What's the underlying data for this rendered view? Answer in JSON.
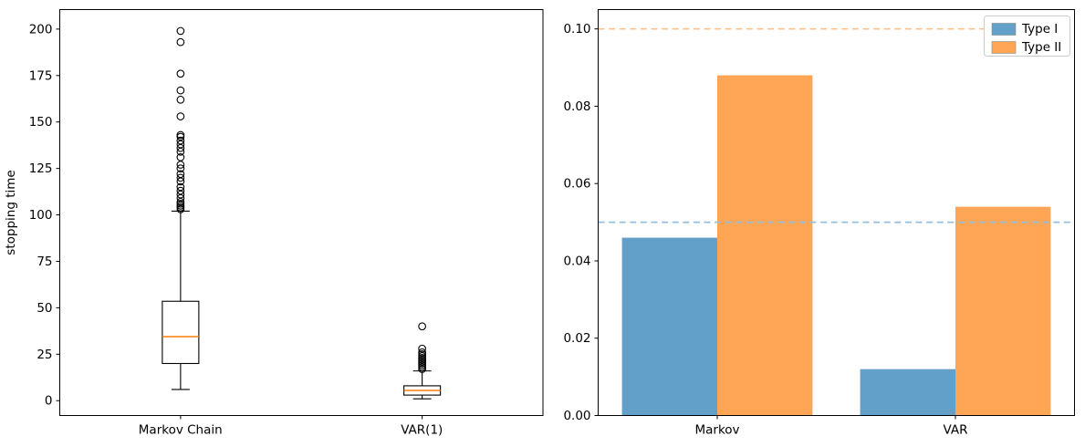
{
  "figure": {
    "background": "#ffffff",
    "axis_color": "#000000",
    "text_color": "#000000"
  },
  "chart_data": [
    {
      "type": "boxplot",
      "panel": "left",
      "title": "",
      "ylabel": "stopping time",
      "categories": [
        "Markov Chain",
        "VAR(1)"
      ],
      "positions": [
        1,
        2
      ],
      "xlim": [
        0.5,
        2.5
      ],
      "ylim": [
        -8,
        210.5
      ],
      "yticks": [
        0,
        25,
        50,
        75,
        100,
        125,
        150,
        175,
        200
      ],
      "ytick_labels": [
        "0",
        "25",
        "50",
        "75",
        "100",
        "125",
        "150",
        "175",
        "200"
      ],
      "grid": false,
      "box_edge_color": "#000000",
      "median_color": "#ff7f0e",
      "boxes": [
        {
          "label": "Markov Chain",
          "whislo": 6,
          "q1": 20,
          "med": 34.5,
          "q3": 53.5,
          "whishi": 102,
          "fliers": [
            103,
            104,
            105,
            106,
            107,
            109,
            111,
            113,
            115,
            118,
            120,
            122,
            125,
            127,
            131,
            134,
            136,
            138,
            140,
            142,
            143,
            153,
            162,
            167,
            176,
            193,
            199
          ]
        },
        {
          "label": "VAR(1)",
          "whislo": 1,
          "q1": 3,
          "med": 5.5,
          "q3": 8,
          "whishi": 16,
          "fliers": [
            17,
            18,
            19,
            20,
            21,
            22,
            23,
            24,
            25,
            26,
            28,
            40
          ]
        }
      ]
    },
    {
      "type": "bar",
      "panel": "right",
      "title": "",
      "ylabel": "",
      "categories": [
        "Markov",
        "VAR"
      ],
      "xlim": [
        -0.5,
        1.5
      ],
      "ylim": [
        0,
        0.105
      ],
      "yticks": [
        0,
        0.02,
        0.04,
        0.06,
        0.08,
        0.1
      ],
      "ytick_labels": [
        "0.00",
        "0.02",
        "0.04",
        "0.06",
        "0.08",
        "0.10"
      ],
      "bar_width": 0.4,
      "grid": false,
      "series": [
        {
          "name": "Type I",
          "color": "#62a0ca",
          "values": [
            0.046,
            0.012
          ]
        },
        {
          "name": "Type II",
          "color": "#ffa556",
          "values": [
            0.088,
            0.054
          ]
        }
      ],
      "reference_lines": [
        {
          "y": 0.05,
          "color": "#94bedd",
          "style": "dashed",
          "series": "Type I"
        },
        {
          "y": 0.1,
          "color": "#ffc18a",
          "style": "dashed",
          "series": "Type II"
        }
      ],
      "legend": {
        "position": "upper right",
        "entries": [
          "Type I",
          "Type II"
        ]
      }
    }
  ]
}
